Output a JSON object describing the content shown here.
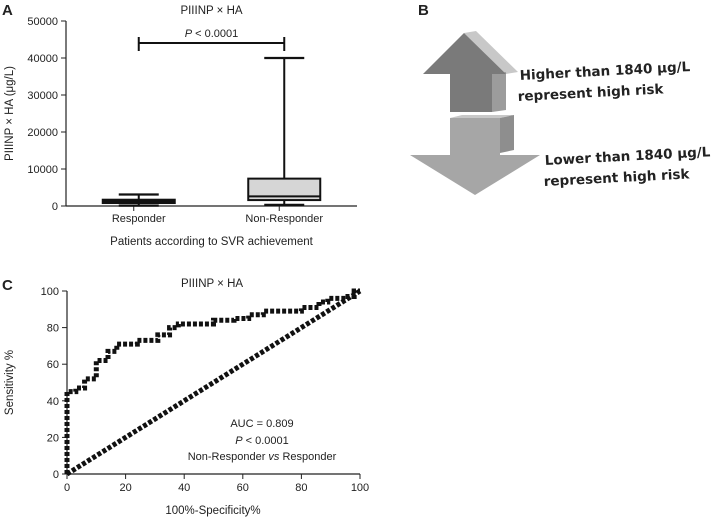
{
  "panels": {
    "a": "A",
    "b": "B",
    "c": "C"
  },
  "colors": {
    "box_fill": "#d6d6d6",
    "arrow_dark": "#7a7a7a",
    "arrow_light": "#a6a6a6",
    "roc_line": "#111111"
  },
  "chart_data": [
    {
      "type": "box",
      "title": "PIIINP × HA",
      "xlabel": "Patients according to SVR achievement",
      "ylabel": "PIIINP × HA (μg/L)",
      "ylim": [
        0,
        50000
      ],
      "yticks": [
        0,
        10000,
        20000,
        30000,
        40000,
        50000
      ],
      "categories": [
        "Responder",
        "Non-Responder"
      ],
      "boxes": [
        {
          "name": "Responder",
          "min": 100,
          "q1": 800,
          "median": 1200,
          "q3": 1700,
          "max": 3100
        },
        {
          "name": "Non-Responder",
          "min": 300,
          "q1": 1600,
          "median": 2600,
          "q3": 7400,
          "max": 40000
        }
      ],
      "annotation": "P < 0.0001"
    },
    {
      "type": "diagram",
      "arrows": [
        {
          "direction": "up",
          "text_line1": "Higher than 1840 μg/L",
          "text_line2": "represent high risk"
        },
        {
          "direction": "down",
          "text_line1": "Lower than 1840 μg/L",
          "text_line2": "represent high risk"
        }
      ]
    },
    {
      "type": "line",
      "title": "PIIINP × HA",
      "xlabel": "100%-Specificity%",
      "ylabel": "Sensitivity %",
      "xlim": [
        0,
        100
      ],
      "ylim": [
        0,
        100
      ],
      "xticks": [
        0,
        20,
        40,
        60,
        80,
        100
      ],
      "yticks": [
        0,
        20,
        40,
        60,
        80,
        100
      ],
      "series": [
        {
          "name": "ROC",
          "points": [
            [
              0,
              0
            ],
            [
              0,
              45
            ],
            [
              3,
              45
            ],
            [
              3,
              47
            ],
            [
              6,
              47
            ],
            [
              6,
              52
            ],
            [
              10,
              52
            ],
            [
              10,
              62
            ],
            [
              14,
              62
            ],
            [
              14,
              67
            ],
            [
              17,
              67
            ],
            [
              17,
              71
            ],
            [
              24,
              71
            ],
            [
              24,
              73
            ],
            [
              31,
              73
            ],
            [
              31,
              76
            ],
            [
              35,
              76
            ],
            [
              35,
              80
            ],
            [
              38,
              80
            ],
            [
              38,
              82
            ],
            [
              50,
              82
            ],
            [
              50,
              84
            ],
            [
              57,
              84
            ],
            [
              57,
              85
            ],
            [
              62,
              85
            ],
            [
              62,
              87
            ],
            [
              67,
              87
            ],
            [
              67,
              89
            ],
            [
              80,
              89
            ],
            [
              80,
              91
            ],
            [
              86,
              91
            ],
            [
              86,
              94
            ],
            [
              89,
              94
            ],
            [
              89,
              96
            ],
            [
              95,
              96
            ],
            [
              95,
              97
            ],
            [
              98,
              97
            ],
            [
              98,
              100
            ],
            [
              100,
              100
            ]
          ]
        },
        {
          "name": "Reference",
          "points": [
            [
              0,
              0
            ],
            [
              100,
              100
            ]
          ]
        }
      ],
      "annotations": [
        "AUC = 0.809",
        "P < 0.0001",
        "Non-Responder vs Responder"
      ]
    }
  ]
}
